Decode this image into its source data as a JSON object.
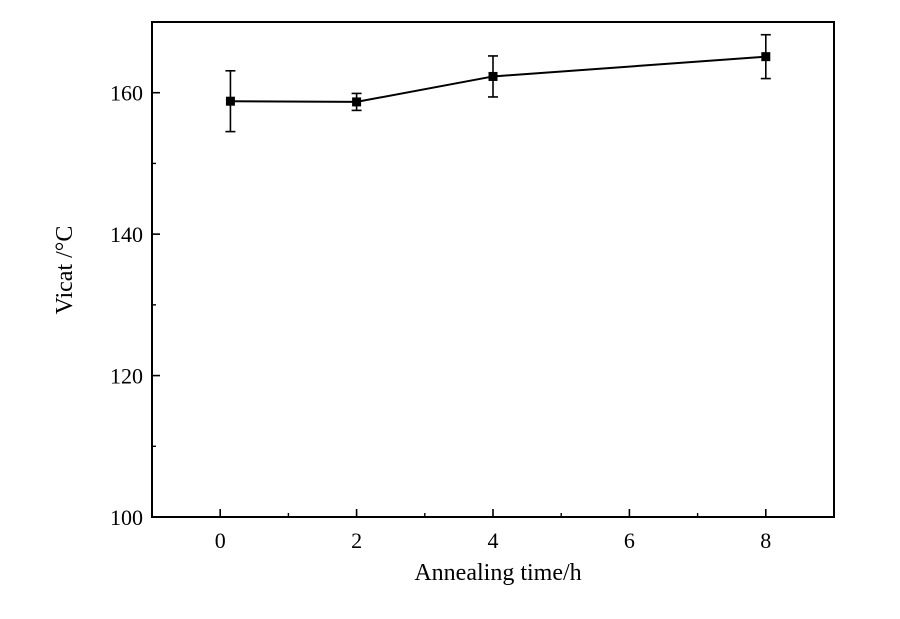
{
  "chart_data": {
    "type": "scatter",
    "title": "",
    "xlabel": "Annealing time/h",
    "ylabel": "Vicat /°C",
    "xlim": [
      -1,
      9
    ],
    "ylim": [
      100,
      170
    ],
    "x_ticks": [
      0,
      2,
      4,
      6,
      8
    ],
    "x_tick_labels": [
      "0",
      "2",
      "4",
      "6",
      "8"
    ],
    "y_ticks": [
      100,
      120,
      140,
      160
    ],
    "y_tick_labels": [
      "100",
      "120",
      "140",
      "160"
    ],
    "grid": false,
    "legend": "none",
    "series": [
      {
        "line_color": "#000000",
        "marker": "square",
        "points": [
          {
            "x": 0.15,
            "y": 158.8,
            "err": 4.3
          },
          {
            "x": 2.0,
            "y": 158.7,
            "err": 1.2
          },
          {
            "x": 4.0,
            "y": 162.3,
            "err": 2.9
          },
          {
            "x": 8.0,
            "y": 165.1,
            "err": 3.1
          }
        ]
      }
    ]
  }
}
